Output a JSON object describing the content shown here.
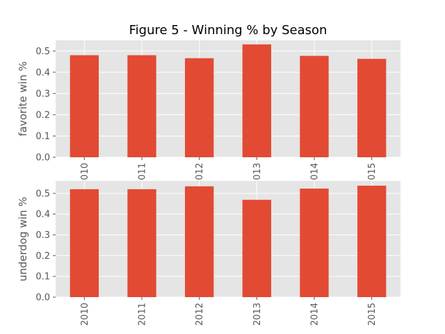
{
  "chart_data": {
    "type": "bar",
    "title": "Figure 5 - Winning % by Season",
    "colors": {
      "bar": "#e24a33",
      "plot_background": "#e5e5e5",
      "grid": "#ffffff",
      "text": "#555555"
    },
    "grid": true,
    "categories": [
      "2010",
      "2011",
      "2012",
      "2013",
      "2014",
      "2015"
    ],
    "subplots": [
      {
        "ylabel": "favorite win %",
        "ylim": [
          0,
          0.55
        ],
        "yticks": [
          "0.0",
          "0.1",
          "0.2",
          "0.3",
          "0.4",
          "0.5"
        ],
        "values": [
          0.48,
          0.48,
          0.466,
          0.531,
          0.477,
          0.463
        ]
      },
      {
        "ylabel": "underdog win %",
        "ylim": [
          0,
          0.56
        ],
        "yticks": [
          "0.0",
          "0.1",
          "0.2",
          "0.3",
          "0.4",
          "0.5"
        ],
        "values": [
          0.52,
          0.52,
          0.534,
          0.469,
          0.523,
          0.537
        ]
      }
    ]
  }
}
